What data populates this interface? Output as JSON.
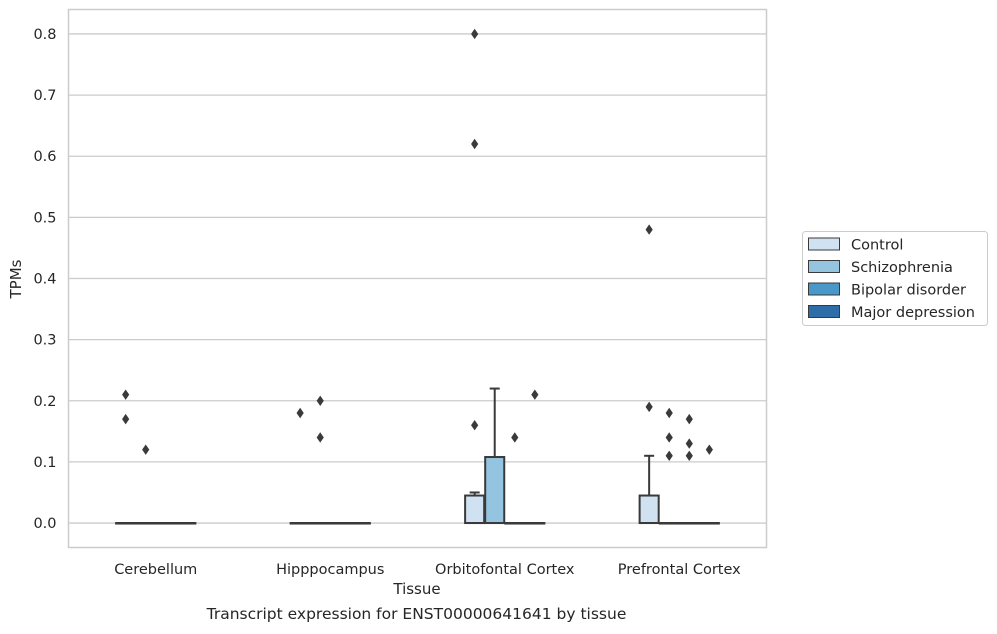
{
  "caption": "Transcript expression for ENST00000641641 by tissue",
  "colors": {
    "Control": "#d0e1f2",
    "Schizophrenia": "#94c4df",
    "Bipolar disorder": "#4a98c9",
    "Major depression": "#2d6ea8",
    "edge": "#3a3a3a",
    "grid": "#cccccc",
    "spine": "#cccccc"
  },
  "chart_data": {
    "type": "box",
    "title": "",
    "xlabel": "Tissue",
    "ylabel": "TPMs",
    "ylim": [
      -0.04,
      0.84
    ],
    "yticks": [
      0.0,
      0.1,
      0.2,
      0.3,
      0.4,
      0.5,
      0.6,
      0.7,
      0.8
    ],
    "ytick_labels": [
      "0.0",
      "0.1",
      "0.2",
      "0.3",
      "0.4",
      "0.5",
      "0.6",
      "0.7",
      "0.8"
    ],
    "grid": true,
    "legend_position": "right",
    "categories": [
      "Cerebellum",
      "Hipppocampus",
      "Orbitofontal Cortex",
      "Prefrontal Cortex"
    ],
    "series": [
      {
        "name": "Control",
        "boxes": [
          {
            "q1": 0,
            "median": 0,
            "q3": 0,
            "whislo": 0,
            "whishi": 0,
            "fliers": [
              0.21,
              0.17
            ]
          },
          {
            "q1": 0,
            "median": 0,
            "q3": 0,
            "whislo": 0,
            "whishi": 0,
            "fliers": [
              0.18
            ]
          },
          {
            "q1": 0,
            "median": 0,
            "q3": 0.045,
            "whislo": 0,
            "whishi": 0.05,
            "fliers": [
              0.8,
              0.62,
              0.16
            ]
          },
          {
            "q1": 0,
            "median": 0,
            "q3": 0.045,
            "whislo": 0,
            "whishi": 0.11,
            "fliers": [
              0.48,
              0.19
            ]
          }
        ]
      },
      {
        "name": "Schizophrenia",
        "boxes": [
          {
            "q1": 0,
            "median": 0,
            "q3": 0,
            "whislo": 0,
            "whishi": 0,
            "fliers": [
              0.12
            ]
          },
          {
            "q1": 0,
            "median": 0,
            "q3": 0,
            "whislo": 0,
            "whishi": 0,
            "fliers": [
              0.2,
              0.14
            ]
          },
          {
            "q1": 0,
            "median": 0,
            "q3": 0.108,
            "whislo": 0,
            "whishi": 0.22,
            "fliers": []
          },
          {
            "q1": 0,
            "median": 0,
            "q3": 0,
            "whislo": 0,
            "whishi": 0,
            "fliers": [
              0.18,
              0.14,
              0.11
            ]
          }
        ]
      },
      {
        "name": "Bipolar disorder",
        "boxes": [
          {
            "q1": 0,
            "median": 0,
            "q3": 0,
            "whislo": 0,
            "whishi": 0,
            "fliers": []
          },
          {
            "q1": 0,
            "median": 0,
            "q3": 0,
            "whislo": 0,
            "whishi": 0,
            "fliers": []
          },
          {
            "q1": 0,
            "median": 0,
            "q3": 0,
            "whislo": 0,
            "whishi": 0,
            "fliers": [
              0.14
            ]
          },
          {
            "q1": 0,
            "median": 0,
            "q3": 0,
            "whislo": 0,
            "whishi": 0,
            "fliers": [
              0.17,
              0.13,
              0.11
            ]
          }
        ]
      },
      {
        "name": "Major depression",
        "boxes": [
          {
            "q1": 0,
            "median": 0,
            "q3": 0,
            "whislo": 0,
            "whishi": 0,
            "fliers": []
          },
          {
            "q1": 0,
            "median": 0,
            "q3": 0,
            "whislo": 0,
            "whishi": 0,
            "fliers": []
          },
          {
            "q1": 0,
            "median": 0,
            "q3": 0,
            "whislo": 0,
            "whishi": 0,
            "fliers": [
              0.21
            ]
          },
          {
            "q1": 0,
            "median": 0,
            "q3": 0,
            "whislo": 0,
            "whishi": 0,
            "fliers": [
              0.12
            ]
          }
        ]
      }
    ]
  }
}
